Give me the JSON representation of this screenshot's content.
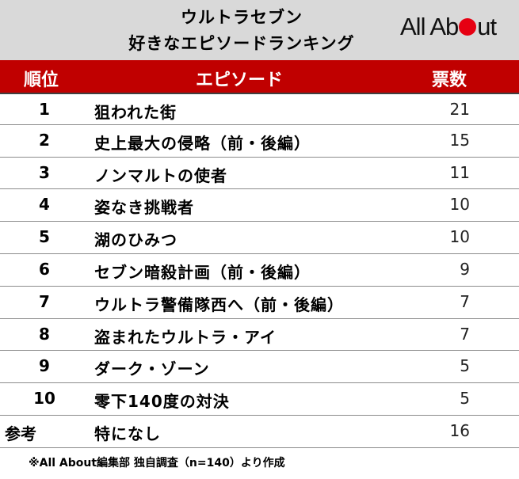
{
  "header": {
    "title_line1": "ウルトラセブン",
    "title_line2": "好きなエピソードランキング",
    "logo_text_before": "All Ab",
    "logo_text_after": "ut"
  },
  "table": {
    "columns": {
      "rank": "順位",
      "episode": "エピソード",
      "votes": "票数"
    },
    "rows": [
      {
        "rank": "1",
        "episode": "狙われた街",
        "votes": "21"
      },
      {
        "rank": "2",
        "episode": "史上最大の侵略（前・後編）",
        "votes": "15"
      },
      {
        "rank": "3",
        "episode": "ノンマルトの使者",
        "votes": "11"
      },
      {
        "rank": "4",
        "episode": "姿なき挑戦者",
        "votes": "10"
      },
      {
        "rank": "5",
        "episode": "湖のひみつ",
        "votes": "10"
      },
      {
        "rank": "6",
        "episode": "セブン暗殺計画（前・後編）",
        "votes": "9"
      },
      {
        "rank": "7",
        "episode": "ウルトラ警備隊西へ（前・後編）",
        "votes": "7"
      },
      {
        "rank": "8",
        "episode": "盗まれたウルトラ・アイ",
        "votes": "7"
      },
      {
        "rank": "9",
        "episode": "ダーク・ゾーン",
        "votes": "5"
      },
      {
        "rank": "10",
        "episode": "零下140度の対決",
        "votes": "5"
      },
      {
        "rank": "参考",
        "episode": "特になし",
        "votes": "16"
      }
    ]
  },
  "footnote": "※All About編集部 独自調査（n=140）より作成",
  "colors": {
    "header_bg": "#c00000",
    "title_bg": "#d9d9d9",
    "logo_dot": "#e60012"
  }
}
